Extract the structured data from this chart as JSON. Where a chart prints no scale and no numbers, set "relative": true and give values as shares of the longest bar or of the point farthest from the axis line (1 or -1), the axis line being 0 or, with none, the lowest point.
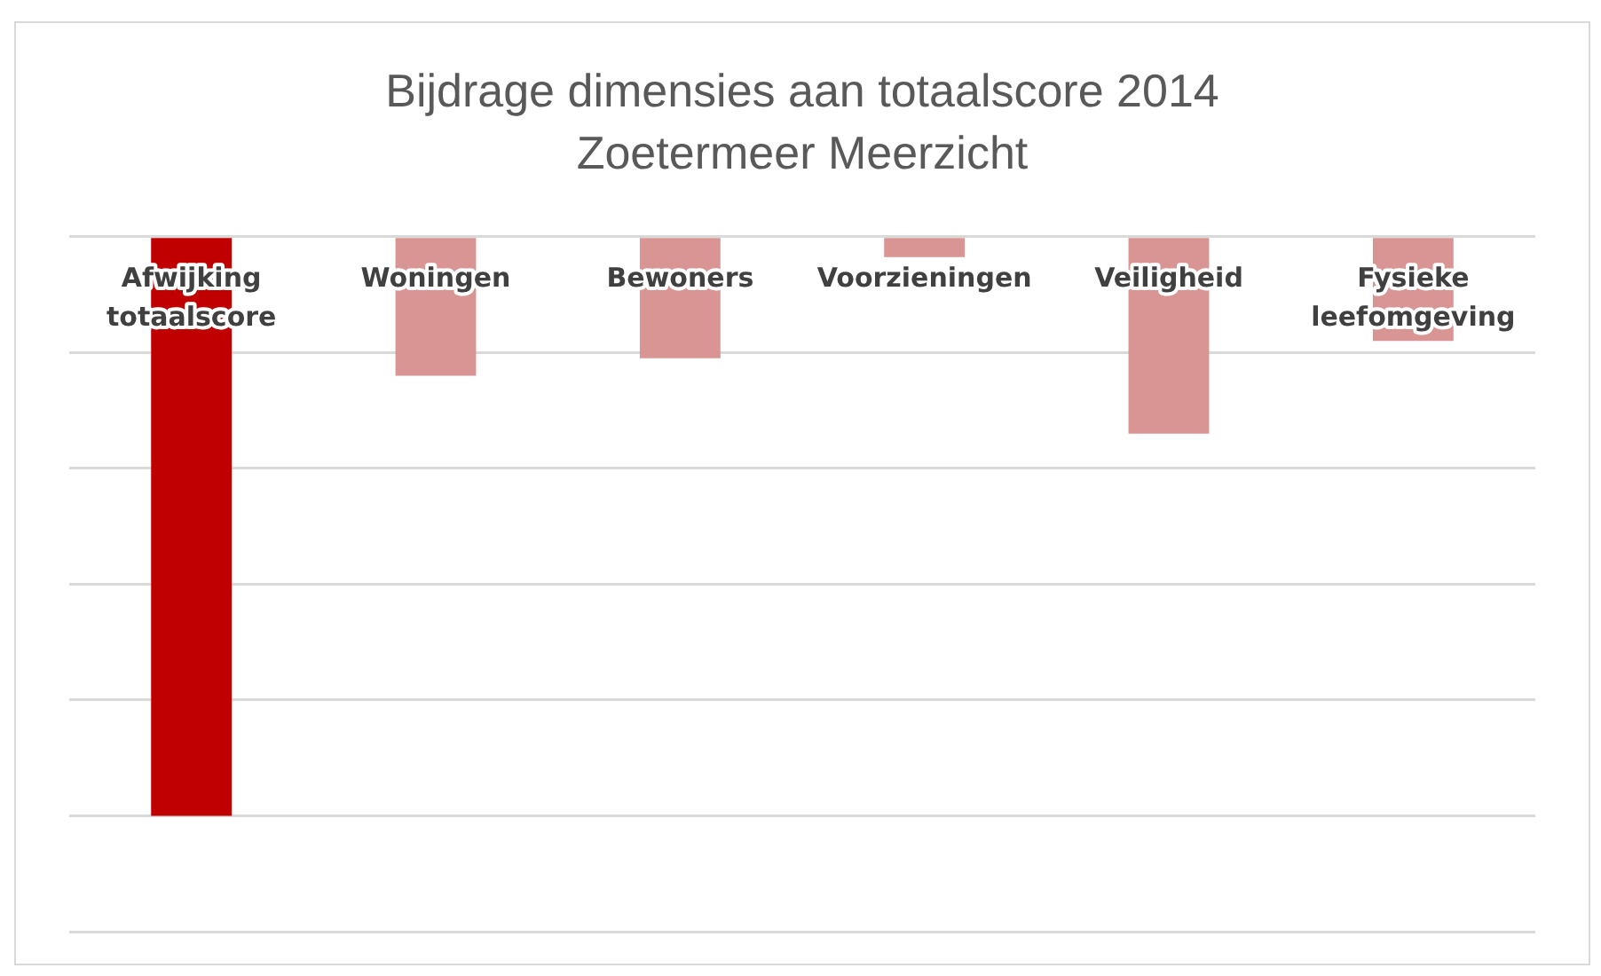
{
  "chart_data": {
    "type": "bar",
    "title": "Bijdrage dimensies aan totaalscore 2014",
    "subtitle": "Zoetermeer Meerzicht",
    "categories": [
      "Afwijking totaalscore",
      "Woningen",
      "Bewoners",
      "Voorzieningen",
      "Veiligheid",
      "Fysieke leefomgeving"
    ],
    "values": [
      -1,
      -0.24,
      -0.21,
      -0.035,
      -0.34,
      -0.18
    ],
    "colors": [
      "#c00000",
      "#d99594",
      "#d99594",
      "#d99594",
      "#d99594",
      "#d99594"
    ],
    "relative": true,
    "grid": "y",
    "legend": false
  }
}
